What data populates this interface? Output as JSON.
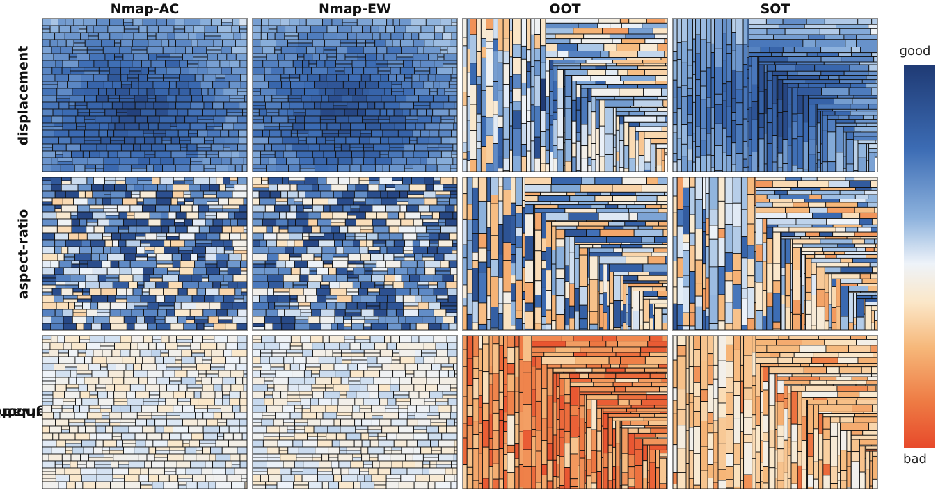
{
  "columns": [
    "Nmap-AC",
    "Nmap-EW",
    "OOT",
    "SOT"
  ],
  "rows": [
    "displacement",
    "aspect-ratio",
    [
      "neighborhood",
      "preservation"
    ]
  ],
  "legend": {
    "top_label": "good",
    "bottom_label": "bad"
  },
  "colors": {
    "good": "#1f3a74",
    "neutral": "#eef3f9",
    "bad": "#e74a2b",
    "cell_border": "#111111"
  },
  "panels": {
    "displacement": {
      "Nmap-AC": "mostly good",
      "Nmap-EW": "mostly good",
      "OOT": "mixed good",
      "SOT": "mostly good"
    },
    "aspect-ratio": {
      "Nmap-AC": "mixed",
      "Nmap-EW": "mixed good",
      "OOT": "mixed",
      "SOT": "mixed bad"
    },
    "neighborhood preservation": {
      "Nmap-AC": "neutral",
      "Nmap-EW": "neutral",
      "OOT": "bad",
      "SOT": "mostly bad"
    }
  }
}
